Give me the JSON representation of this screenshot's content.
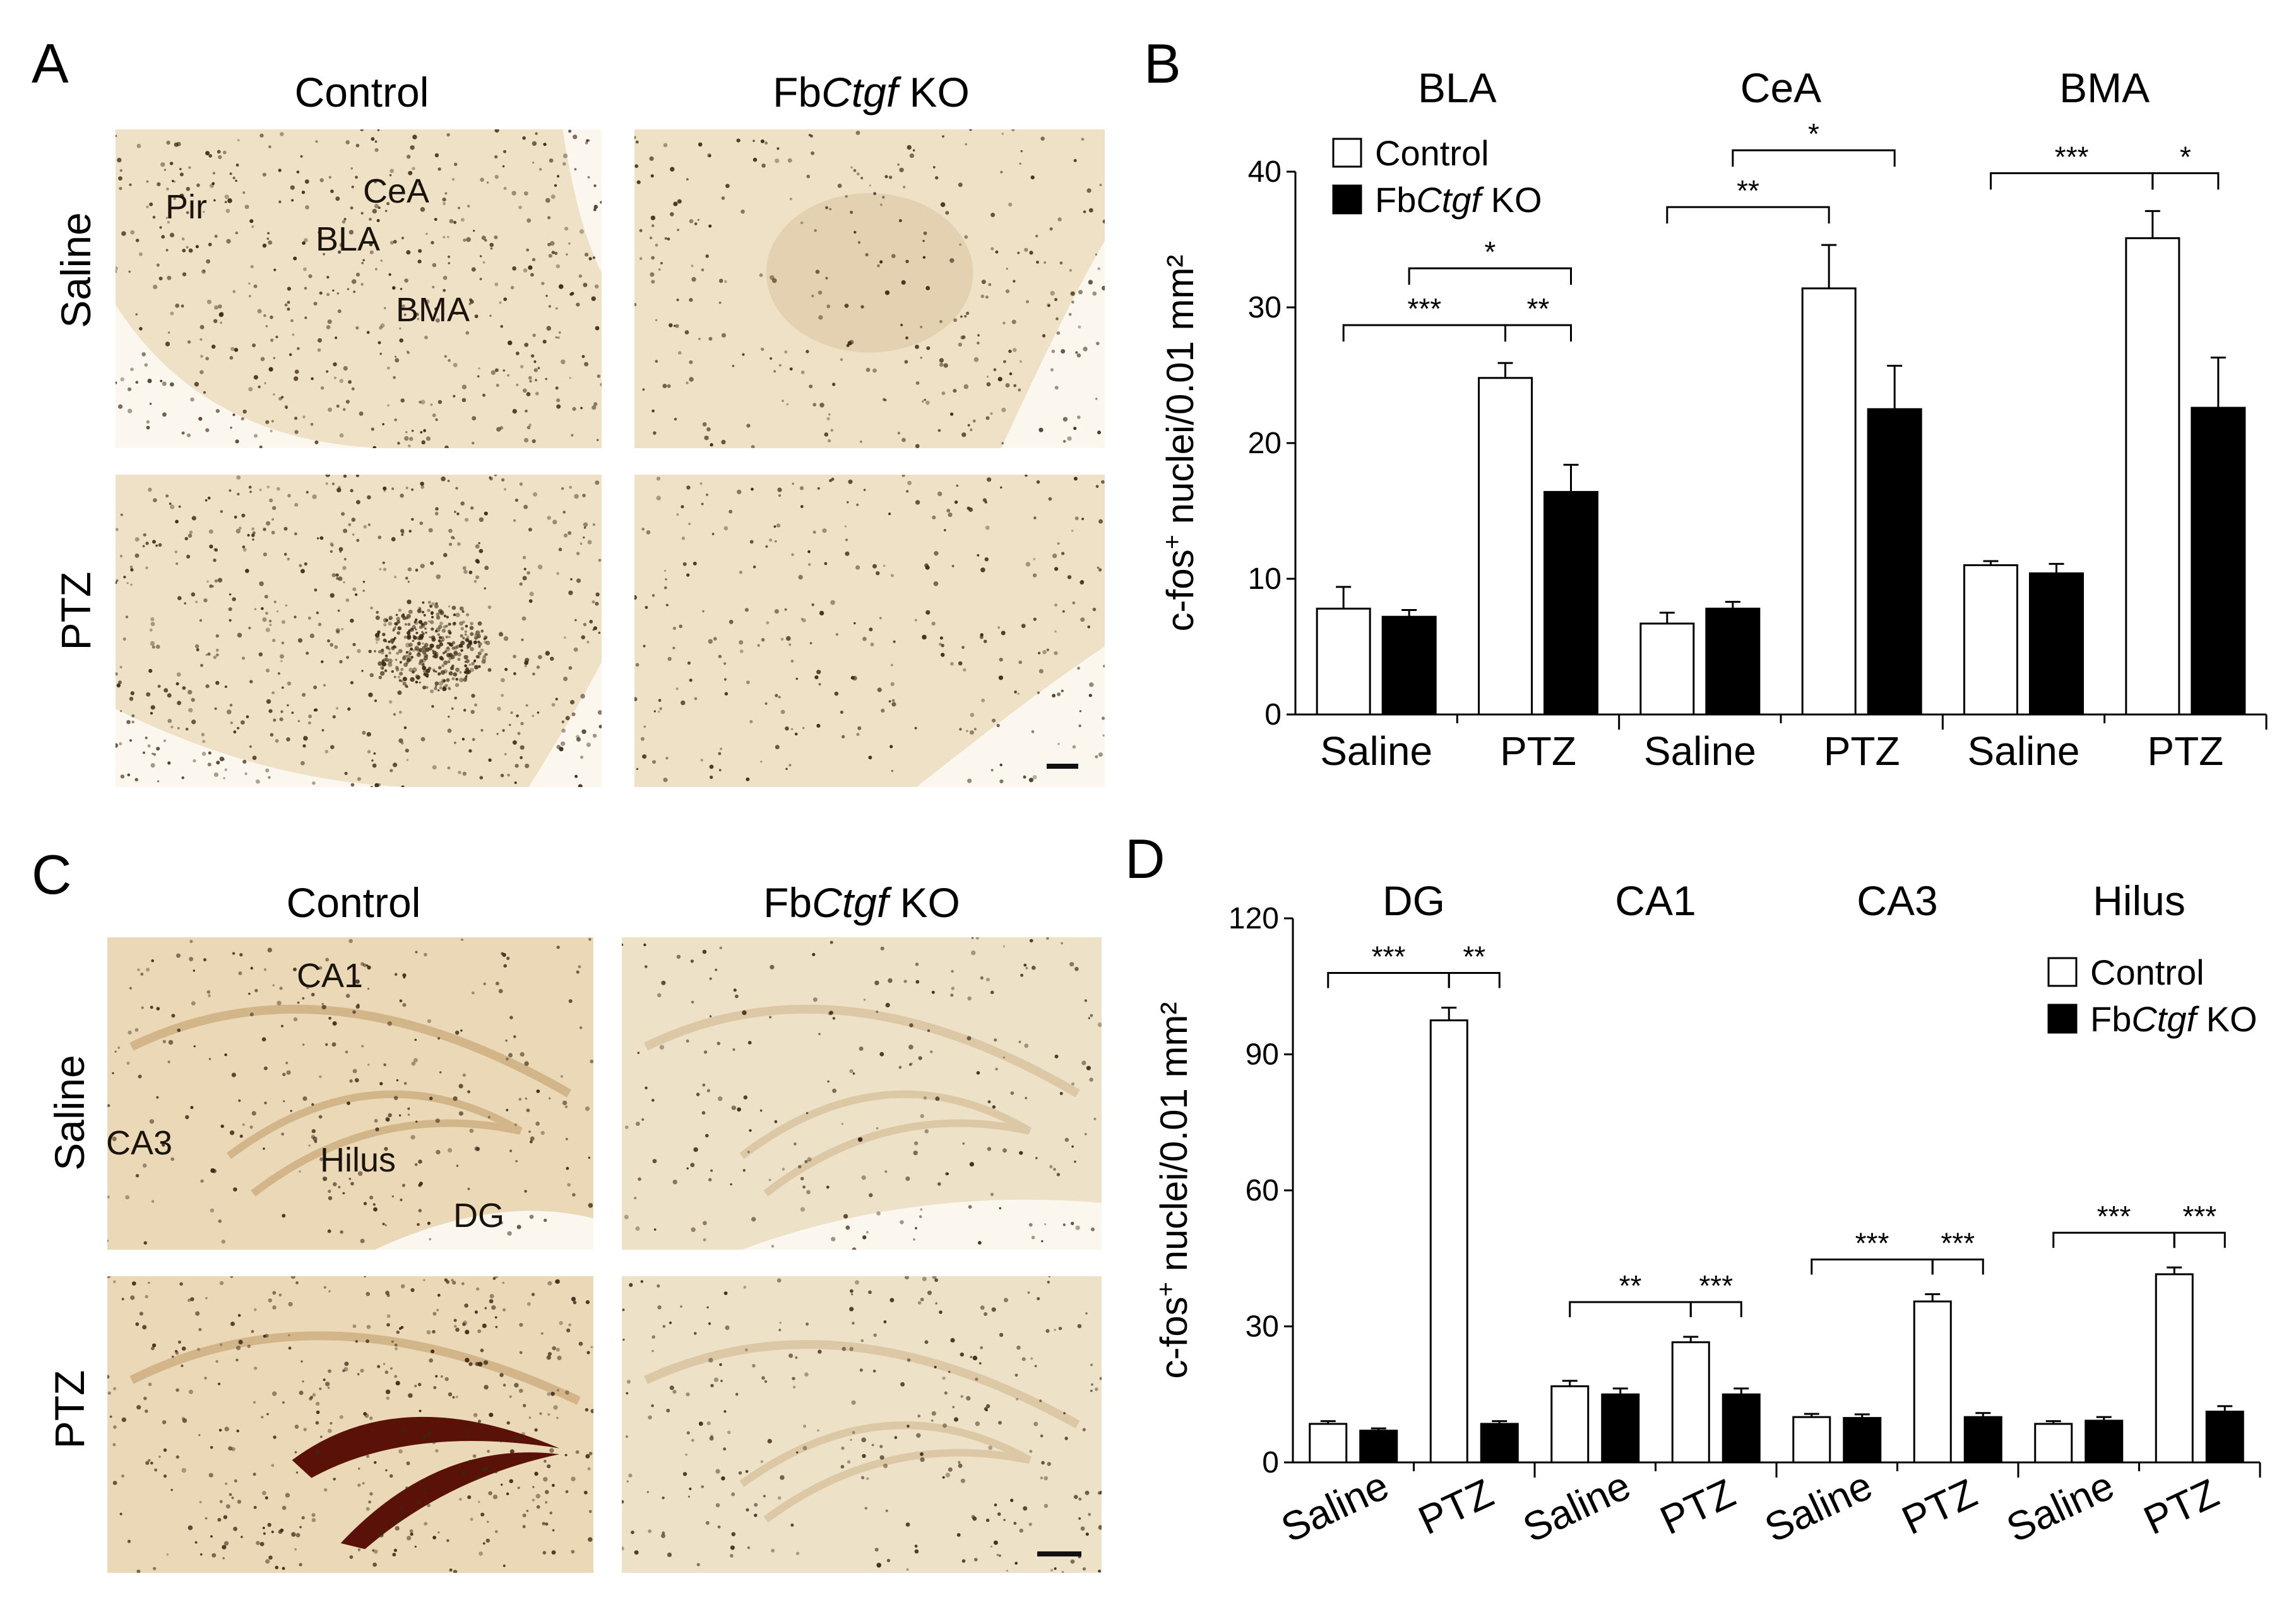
{
  "panels": {
    "A": {
      "letter": "A",
      "col_titles": [
        "Control",
        "KO"
      ],
      "col_title_prefix": "Fb",
      "col_title_gene": "Ctgf",
      "row_titles": [
        "Saline",
        "PTZ"
      ],
      "region_labels": [
        "Pir",
        "CeA",
        "BLA",
        "BMA"
      ]
    },
    "B": {
      "letter": "B"
    },
    "C": {
      "letter": "C",
      "col_titles": [
        "Control",
        "KO"
      ],
      "col_title_prefix": "Fb",
      "col_title_gene": "Ctgf",
      "row_titles": [
        "Saline",
        "PTZ"
      ],
      "region_labels": [
        "CA1",
        "CA3",
        "Hilus",
        "DG"
      ]
    },
    "D": {
      "letter": "D"
    }
  },
  "colors": {
    "control_fill": "#ffffff",
    "ko_fill": "#000000",
    "tissue_light": "#efe1c6",
    "tissue_dark": "#b89468",
    "dg_stain": "#5a1208"
  },
  "chart_data": [
    {
      "type": "bar",
      "panel": "B",
      "ylabel_main": "c-fos",
      "ylabel_sup": "+",
      "ylabel_rest": " nuclei/0.01 mm²",
      "ylim": [
        0,
        40
      ],
      "yticks": [
        0,
        10,
        20,
        30,
        40
      ],
      "legend": {
        "placement": "top-left",
        "entries": [
          {
            "label": "Control",
            "fill": "#ffffff"
          },
          {
            "prefix": "Fb",
            "gene": "Ctgf",
            "suffix": " KO",
            "fill": "#000000"
          }
        ]
      },
      "groups": [
        {
          "name": "BLA",
          "categories": [
            "Saline",
            "PTZ"
          ],
          "series": [
            {
              "name": "Control",
              "values": [
                7.8,
                24.8
              ],
              "errors": [
                1.6,
                1.1
              ]
            },
            {
              "name": "FbCtgf KO",
              "values": [
                7.2,
                16.4
              ],
              "errors": [
                0.5,
                2.0
              ]
            }
          ],
          "significance": [
            {
              "from": "Saline-Control",
              "to": "PTZ-Control",
              "label": "***"
            },
            {
              "from": "PTZ-Control",
              "to": "PTZ-KO",
              "label": "**"
            },
            {
              "from": "Saline-KO",
              "to": "PTZ-KO",
              "label": "*"
            }
          ]
        },
        {
          "name": "CeA",
          "categories": [
            "Saline",
            "PTZ"
          ],
          "series": [
            {
              "name": "Control",
              "values": [
                6.7,
                31.4
              ],
              "errors": [
                0.8,
                3.2
              ]
            },
            {
              "name": "FbCtgf KO",
              "values": [
                7.8,
                22.5
              ],
              "errors": [
                0.5,
                3.2
              ]
            }
          ],
          "significance": [
            {
              "from": "Saline-Control",
              "to": "PTZ-Control",
              "label": "**"
            },
            {
              "from": "Saline-KO",
              "to": "PTZ-KO",
              "label": "*"
            }
          ]
        },
        {
          "name": "BMA",
          "categories": [
            "Saline",
            "PTZ"
          ],
          "series": [
            {
              "name": "Control",
              "values": [
                11.0,
                35.1
              ],
              "errors": [
                0.3,
                2.0
              ]
            },
            {
              "name": "FbCtgf KO",
              "values": [
                10.4,
                22.6
              ],
              "errors": [
                0.7,
                3.7
              ]
            }
          ],
          "significance": [
            {
              "from": "Saline-Control",
              "to": "PTZ-Control",
              "label": "***"
            },
            {
              "from": "PTZ-Control",
              "to": "PTZ-KO",
              "label": "*"
            }
          ]
        }
      ]
    },
    {
      "type": "bar",
      "panel": "D",
      "ylabel_main": "c-fos",
      "ylabel_sup": "+",
      "ylabel_rest": " nuclei/0.01 mm²",
      "ylim": [
        0,
        120
      ],
      "yticks": [
        0,
        30,
        60,
        90,
        120
      ],
      "legend": {
        "placement": "top-right",
        "entries": [
          {
            "label": "Control",
            "fill": "#ffffff"
          },
          {
            "prefix": "Fb",
            "gene": "Ctgf",
            "suffix": " KO",
            "fill": "#000000"
          }
        ]
      },
      "groups": [
        {
          "name": "DG",
          "categories": [
            "Saline",
            "PTZ"
          ],
          "series": [
            {
              "name": "Control",
              "values": [
                8.5,
                97.5
              ],
              "errors": [
                0.6,
                2.8
              ]
            },
            {
              "name": "FbCtgf KO",
              "values": [
                7.0,
                8.5
              ],
              "errors": [
                0.5,
                0.6
              ]
            }
          ],
          "significance": [
            {
              "from": "Saline-Control",
              "to": "PTZ-Control",
              "label": "***"
            },
            {
              "from": "PTZ-Control",
              "to": "PTZ-KO",
              "label": "**"
            }
          ]
        },
        {
          "name": "CA1",
          "categories": [
            "Saline",
            "PTZ"
          ],
          "series": [
            {
              "name": "Control",
              "values": [
                16.8,
                26.5
              ],
              "errors": [
                1.2,
                1.2
              ]
            },
            {
              "name": "FbCtgf KO",
              "values": [
                15.0,
                15.0
              ],
              "errors": [
                1.3,
                1.3
              ]
            }
          ],
          "significance": [
            {
              "from": "Saline-Control",
              "to": "PTZ-Control",
              "label": "**"
            },
            {
              "from": "PTZ-Control",
              "to": "PTZ-KO",
              "label": "***"
            }
          ]
        },
        {
          "name": "CA3",
          "categories": [
            "Saline",
            "PTZ"
          ],
          "series": [
            {
              "name": "Control",
              "values": [
                10.0,
                35.5
              ],
              "errors": [
                0.7,
                1.6
              ]
            },
            {
              "name": "FbCtgf KO",
              "values": [
                9.8,
                10.0
              ],
              "errors": [
                0.8,
                0.9
              ]
            }
          ],
          "significance": [
            {
              "from": "Saline-Control",
              "to": "PTZ-Control",
              "label": "***"
            },
            {
              "from": "PTZ-Control",
              "to": "PTZ-KO",
              "label": "***"
            }
          ]
        },
        {
          "name": "Hilus",
          "categories": [
            "Saline",
            "PTZ"
          ],
          "series": [
            {
              "name": "Control",
              "values": [
                8.5,
                41.5
              ],
              "errors": [
                0.6,
                1.5
              ]
            },
            {
              "name": "FbCtgf KO",
              "values": [
                9.2,
                11.2
              ],
              "errors": [
                0.8,
                1.2
              ]
            }
          ],
          "significance": [
            {
              "from": "Saline-Control",
              "to": "PTZ-Control",
              "label": "***"
            },
            {
              "from": "PTZ-Control",
              "to": "PTZ-KO",
              "label": "***"
            }
          ]
        }
      ]
    }
  ]
}
